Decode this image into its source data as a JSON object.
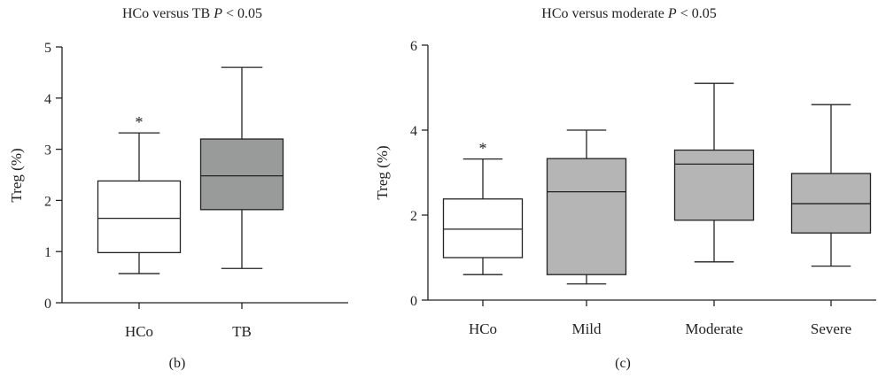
{
  "chart_data": [
    {
      "type": "box",
      "title": "HCo versus TB",
      "title_stat": "P",
      "title_tail": "< 0.05",
      "panel_label": "(b)",
      "ylabel": "Treg (%)",
      "ylim": [
        0,
        5
      ],
      "yticks": [
        "0",
        "1",
        "2",
        "3",
        "4",
        "5"
      ],
      "categories": [
        "HCo",
        "TB"
      ],
      "fills": [
        "#ffffff",
        "#999b9a"
      ],
      "boxes": [
        {
          "min": 0.57,
          "q1": 0.98,
          "median": 1.65,
          "q3": 2.38,
          "max": 3.32,
          "annotation": "*"
        },
        {
          "min": 0.67,
          "q1": 1.82,
          "median": 2.48,
          "q3": 3.2,
          "max": 4.6,
          "annotation": ""
        }
      ]
    },
    {
      "type": "box",
      "title": "HCo versus moderate",
      "title_stat": "P",
      "title_tail": "< 0.05",
      "panel_label": "(c)",
      "ylabel": "Treg (%)",
      "ylim": [
        0,
        6
      ],
      "yticks": [
        "0",
        "2",
        "4",
        "6"
      ],
      "categories": [
        "HCo",
        "Mild",
        "Moderate",
        "Severe"
      ],
      "fills": [
        "#ffffff",
        "#b5b5b5",
        "#b5b5b5",
        "#b5b5b5"
      ],
      "boxes": [
        {
          "min": 0.6,
          "q1": 1.0,
          "median": 1.67,
          "q3": 2.38,
          "max": 3.32,
          "annotation": "*"
        },
        {
          "min": 0.38,
          "q1": 0.6,
          "median": 2.55,
          "q3": 3.33,
          "max": 4.0,
          "annotation": ""
        },
        {
          "min": 0.9,
          "q1": 1.88,
          "median": 3.2,
          "q3": 3.53,
          "max": 5.1,
          "annotation": ""
        },
        {
          "min": 0.8,
          "q1": 1.58,
          "median": 2.27,
          "q3": 2.98,
          "max": 4.6,
          "annotation": ""
        }
      ]
    }
  ]
}
